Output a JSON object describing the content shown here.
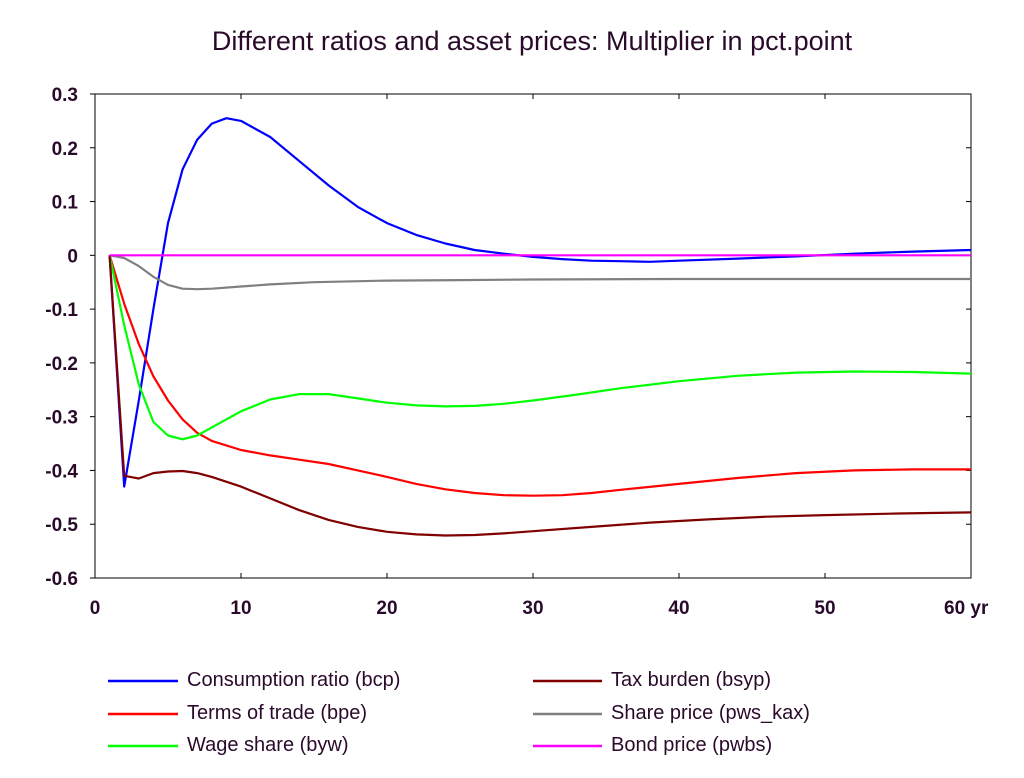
{
  "chart_data": {
    "type": "line",
    "title": "Different ratios and asset prices: Multiplier in pct.point",
    "xlabel": "",
    "ylabel": "",
    "x_unit": "yr",
    "xlim": [
      0,
      60
    ],
    "ylim": [
      -0.6,
      0.3
    ],
    "x_ticks": [
      0,
      10,
      20,
      30,
      40,
      50,
      60
    ],
    "x_tick_labels": [
      "0",
      "10",
      "20",
      "30",
      "40",
      "50",
      "60 yr"
    ],
    "y_ticks": [
      0.3,
      0.2,
      0.1,
      0,
      -0.1,
      -0.2,
      -0.3,
      -0.4,
      -0.5,
      -0.6
    ],
    "y_tick_labels": [
      "0.3",
      "0.2",
      "0.1",
      "0",
      "-0.1",
      "-0.2",
      "-0.3",
      "-0.4",
      "-0.5",
      "-0.6"
    ],
    "grid": false,
    "legend_position": "bottom",
    "series": [
      {
        "name": "Consumption ratio (bcp)",
        "color": "#0000ff",
        "points": [
          [
            1,
            0
          ],
          [
            2,
            -0.43
          ],
          [
            3,
            -0.27
          ],
          [
            4,
            -0.1
          ],
          [
            5,
            0.06
          ],
          [
            6,
            0.16
          ],
          [
            7,
            0.215
          ],
          [
            8,
            0.245
          ],
          [
            9,
            0.255
          ],
          [
            10,
            0.25
          ],
          [
            12,
            0.22
          ],
          [
            14,
            0.175
          ],
          [
            16,
            0.13
          ],
          [
            18,
            0.09
          ],
          [
            20,
            0.06
          ],
          [
            22,
            0.038
          ],
          [
            24,
            0.022
          ],
          [
            26,
            0.01
          ],
          [
            28,
            0.003
          ],
          [
            30,
            -0.003
          ],
          [
            32,
            -0.007
          ],
          [
            34,
            -0.01
          ],
          [
            36,
            -0.011
          ],
          [
            38,
            -0.012
          ],
          [
            40,
            -0.01
          ],
          [
            44,
            -0.006
          ],
          [
            48,
            -0.002
          ],
          [
            52,
            0.003
          ],
          [
            56,
            0.007
          ],
          [
            60,
            0.01
          ]
        ]
      },
      {
        "name": "Terms of trade (bpe)",
        "color": "#ff0000",
        "points": [
          [
            1,
            0
          ],
          [
            2,
            -0.09
          ],
          [
            3,
            -0.165
          ],
          [
            4,
            -0.225
          ],
          [
            5,
            -0.27
          ],
          [
            6,
            -0.305
          ],
          [
            7,
            -0.33
          ],
          [
            8,
            -0.345
          ],
          [
            10,
            -0.362
          ],
          [
            12,
            -0.372
          ],
          [
            14,
            -0.38
          ],
          [
            16,
            -0.388
          ],
          [
            18,
            -0.4
          ],
          [
            20,
            -0.412
          ],
          [
            22,
            -0.425
          ],
          [
            24,
            -0.435
          ],
          [
            26,
            -0.442
          ],
          [
            28,
            -0.446
          ],
          [
            30,
            -0.447
          ],
          [
            32,
            -0.446
          ],
          [
            34,
            -0.442
          ],
          [
            36,
            -0.436
          ],
          [
            40,
            -0.425
          ],
          [
            44,
            -0.414
          ],
          [
            48,
            -0.405
          ],
          [
            52,
            -0.4
          ],
          [
            56,
            -0.398
          ],
          [
            60,
            -0.398
          ]
        ]
      },
      {
        "name": "Wage share (byw)",
        "color": "#00ff00",
        "points": [
          [
            1,
            0
          ],
          [
            2,
            -0.13
          ],
          [
            3,
            -0.24
          ],
          [
            4,
            -0.31
          ],
          [
            5,
            -0.335
          ],
          [
            6,
            -0.342
          ],
          [
            7,
            -0.335
          ],
          [
            8,
            -0.32
          ],
          [
            10,
            -0.29
          ],
          [
            12,
            -0.268
          ],
          [
            14,
            -0.258
          ],
          [
            16,
            -0.258
          ],
          [
            18,
            -0.266
          ],
          [
            20,
            -0.274
          ],
          [
            22,
            -0.279
          ],
          [
            24,
            -0.281
          ],
          [
            26,
            -0.28
          ],
          [
            28,
            -0.276
          ],
          [
            30,
            -0.27
          ],
          [
            33,
            -0.259
          ],
          [
            36,
            -0.247
          ],
          [
            40,
            -0.234
          ],
          [
            44,
            -0.224
          ],
          [
            48,
            -0.218
          ],
          [
            52,
            -0.216
          ],
          [
            56,
            -0.217
          ],
          [
            60,
            -0.22
          ]
        ]
      },
      {
        "name": "Tax burden (bsyp)",
        "color": "#800000",
        "points": [
          [
            1,
            0
          ],
          [
            2,
            -0.41
          ],
          [
            3,
            -0.415
          ],
          [
            4,
            -0.405
          ],
          [
            5,
            -0.402
          ],
          [
            6,
            -0.401
          ],
          [
            7,
            -0.405
          ],
          [
            8,
            -0.412
          ],
          [
            10,
            -0.43
          ],
          [
            12,
            -0.452
          ],
          [
            14,
            -0.474
          ],
          [
            16,
            -0.492
          ],
          [
            18,
            -0.505
          ],
          [
            20,
            -0.514
          ],
          [
            22,
            -0.519
          ],
          [
            24,
            -0.521
          ],
          [
            26,
            -0.52
          ],
          [
            28,
            -0.517
          ],
          [
            30,
            -0.513
          ],
          [
            34,
            -0.505
          ],
          [
            38,
            -0.497
          ],
          [
            42,
            -0.491
          ],
          [
            46,
            -0.486
          ],
          [
            50,
            -0.483
          ],
          [
            55,
            -0.48
          ],
          [
            60,
            -0.478
          ]
        ]
      },
      {
        "name": "Share price (pws_kax)",
        "color": "#808080",
        "points": [
          [
            1,
            0
          ],
          [
            2,
            -0.005
          ],
          [
            3,
            -0.02
          ],
          [
            4,
            -0.04
          ],
          [
            5,
            -0.055
          ],
          [
            6,
            -0.062
          ],
          [
            7,
            -0.063
          ],
          [
            8,
            -0.062
          ],
          [
            10,
            -0.058
          ],
          [
            12,
            -0.054
          ],
          [
            15,
            -0.05
          ],
          [
            20,
            -0.047
          ],
          [
            25,
            -0.046
          ],
          [
            30,
            -0.045
          ],
          [
            40,
            -0.044
          ],
          [
            50,
            -0.044
          ],
          [
            60,
            -0.044
          ]
        ]
      },
      {
        "name": "Bond price (pwbs)",
        "color": "#ff00ff",
        "points": [
          [
            1,
            0
          ],
          [
            10,
            0
          ],
          [
            20,
            0
          ],
          [
            30,
            0
          ],
          [
            40,
            0
          ],
          [
            50,
            0
          ],
          [
            60,
            0
          ]
        ]
      }
    ]
  }
}
